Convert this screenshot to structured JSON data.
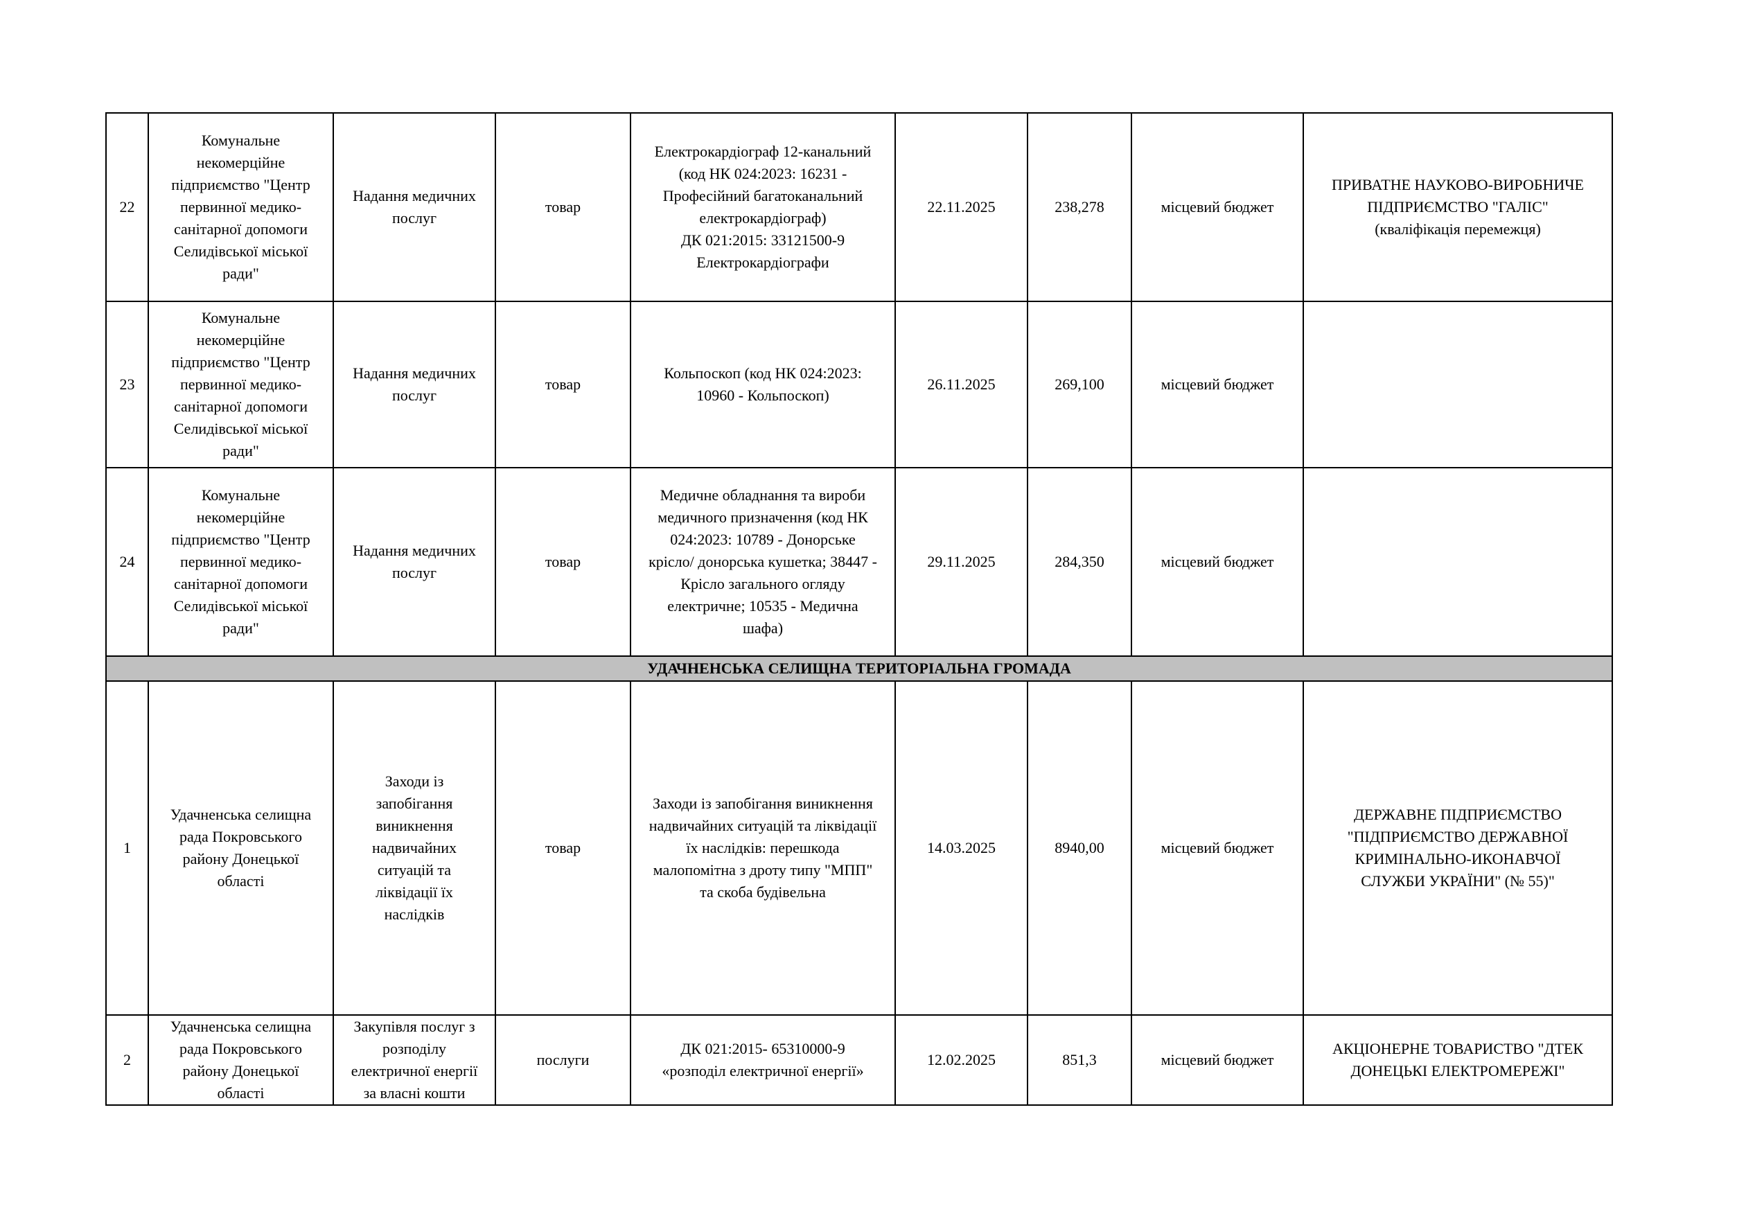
{
  "rows_a": [
    {
      "no": "22",
      "customer": "Комунальне\nнекомерційне\nпідприємство \"Центр\nпервинної медико-\nсанітарної допомоги\nСелидівської міської\nради\"",
      "purpose": "Надання медичних\nпослуг",
      "type": "товар",
      "subject": "Електрокардіограф 12-канальний\n(код НК 024:2023: 16231 -\nПрофесійний багатоканальний\nелектрокардіограф)\nДК 021:2015: 33121500-9\nЕлектрокардіографи",
      "date": "22.11.2025",
      "amount": "238,278",
      "source": "місцевий бюджет",
      "supplier": "ПРИВАТНЕ НАУКОВО-ВИРОБНИЧЕ\nПІДПРИЄМСТВО \"ГАЛІС\"\n(кваліфікація перемежця)"
    },
    {
      "no": "23",
      "customer": "Комунальне\nнекомерційне\nпідприємство \"Центр\nпервинної медико-\nсанітарної допомоги\nСелидівської міської\nради\"",
      "purpose": "Надання медичних\nпослуг",
      "type": "товар",
      "subject": "Кольпоскоп (код НК 024:2023:\n10960 - Кольпоскоп)",
      "date": "26.11.2025",
      "amount": "269,100",
      "source": "місцевий бюджет",
      "supplier": ""
    },
    {
      "no": "24",
      "customer": "Комунальне\nнекомерційне\nпідприємство \"Центр\nпервинної медико-\nсанітарної допомоги\nСелидівської міської\nради\"",
      "purpose": "Надання медичних\nпослуг",
      "type": "товар",
      "subject": "Медичне обладнання та вироби\nмедичного призначення (код НК\n024:2023: 10789 - Донорське\nкрісло/ донорська кушетка; 38447 -\nКрісло загального огляду\nелектричне; 10535 - Медична\nшафа)",
      "date": "29.11.2025",
      "amount": "284,350",
      "source": "місцевий бюджет",
      "supplier": ""
    }
  ],
  "section_title": "УДАЧНЕНСЬКА СЕЛИЩНА ТЕРИТОРІАЛЬНА ГРОМАДА",
  "rows_b": [
    {
      "no": "1",
      "customer": "Удачненська селищна\nрада Покровського\nрайону Донецької\nобласті",
      "purpose": "Заходи із\nзапобігання\nвиникнення\nнадвичайних\nситуацій та\nліквідації їх\nнаслідків",
      "type": "товар",
      "subject": "Заходи із запобігання виникнення\nнадвичайних ситуацій та ліквідації\nїх наслідків: перешкода\nмалопомітна з дроту типу \"МПП\"\nта скоба будівельна",
      "date": "14.03.2025",
      "amount": "8940,00",
      "source": "місцевий бюджет",
      "supplier": "ДЕРЖАВНЕ ПІДПРИЄМСТВО\n\"ПІДПРИЄМСТВО ДЕРЖАВНОЇ\nКРИМІНАЛЬНО-ИКОНАВЧОЇ\nСЛУЖБИ УКРАЇНИ\" (№ 55)\""
    },
    {
      "no": "2",
      "customer": "Удачненська селищна\nрада Покровського\nрайону Донецької\nобласті",
      "purpose": "Закупівля послуг з\nрозподілу\nелектричної енергії\nза власні кошти",
      "type": "послуги",
      "subject": "ДК 021:2015- 65310000-9\n«розподіл електричної енергії»",
      "date": "12.02.2025",
      "amount": "851,3",
      "source": "місцевий бюджет",
      "supplier": "АКЦІОНЕРНЕ ТОВАРИСТВО \"ДТЕК\nДОНЕЦЬКІ ЕЛЕКТРОМЕРЕЖІ\""
    }
  ]
}
